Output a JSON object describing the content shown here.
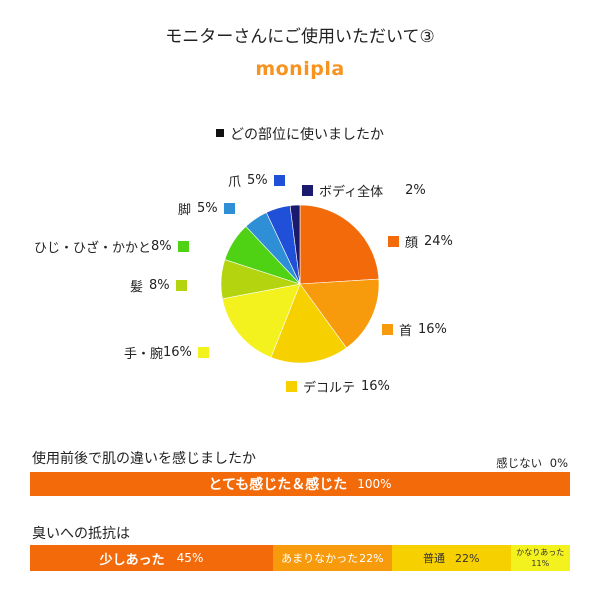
{
  "title": "モニターさんにご使用いただいて③",
  "brand": "monipla",
  "chart_data": [
    {
      "type": "pie",
      "title": "どの部位に使いましたか",
      "slices": [
        {
          "label": "顔",
          "value": 24,
          "display": "24%",
          "color": "#f26a0a"
        },
        {
          "label": "首",
          "value": 16,
          "display": "16%",
          "color": "#f79b0d"
        },
        {
          "label": "デコルテ",
          "value": 16,
          "display": "16%",
          "color": "#f7d000"
        },
        {
          "label": "手・腕",
          "value": 16,
          "display": "16%",
          "color": "#f4f21e"
        },
        {
          "label": "髪",
          "value": 8,
          "display": "8%",
          "color": "#b4d40f"
        },
        {
          "label": "ひじ・ひざ・かかと",
          "value": 8,
          "display": "8%",
          "color": "#4fd214"
        },
        {
          "label": "脚",
          "value": 5,
          "display": "5%",
          "color": "#2f8fd6"
        },
        {
          "label": "爪",
          "value": 5,
          "display": "5%",
          "color": "#2150d8"
        },
        {
          "label": "ボディ全体",
          "value": 2,
          "display": "2%",
          "color": "#1a1a6e"
        }
      ]
    },
    {
      "type": "bar",
      "orientation": "horizontal-stacked",
      "title": "使用前後で肌の違いを感じましたか",
      "segments": [
        {
          "label": "とても感じた＆感じた",
          "value": 100,
          "display": "100%",
          "color": "#f26a0a"
        },
        {
          "label": "感じない",
          "value": 0,
          "display": "0%",
          "color": "#ffffff"
        }
      ]
    },
    {
      "type": "bar",
      "orientation": "horizontal-stacked",
      "title": "臭いへの抵抗は",
      "segments": [
        {
          "label": "少しあった",
          "value": 45,
          "display": "45%",
          "color": "#f26a0a"
        },
        {
          "label": "あまりなかった",
          "value": 22,
          "display": "22%",
          "color": "#f79b0d"
        },
        {
          "label": "普通",
          "value": 22,
          "display": "22%",
          "color": "#f7d000"
        },
        {
          "label": "かなりあった",
          "value": 11,
          "display": "11%",
          "color": "#f4f21e"
        }
      ]
    }
  ]
}
